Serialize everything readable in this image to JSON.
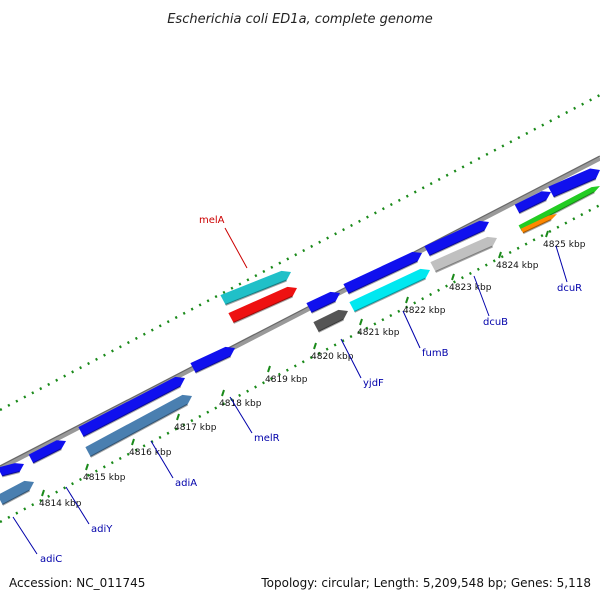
{
  "title": "Escherichia coli ED1a, complete genome",
  "footer": {
    "accession": "Accession: NC_011745",
    "summary": "Topology: circular; Length: 5,209,548 bp; Genes: 5,118"
  },
  "colors": {
    "backbone": "#888888",
    "ticks": "#1a8a1a",
    "label_blue": "#0000aa",
    "label_red": "#cc0000"
  },
  "scale_labels": [
    "4814 kbp",
    "4815 kbp",
    "4816 kbp",
    "4817 kbp",
    "4818 kbp",
    "4819 kbp",
    "4820 kbp",
    "4821 kbp",
    "4822 kbp",
    "4823 kbp",
    "4824 kbp",
    "4825 kbp"
  ],
  "genes": [
    {
      "name": "adiC",
      "color": "#4a7fb0",
      "strand": "forward-lower"
    },
    {
      "name": "adiY",
      "color": "#1010ee",
      "strand": "forward-upper"
    },
    {
      "name": "adiA",
      "color": "#4a7fb0",
      "strand": "forward-lower"
    },
    {
      "name": "melR",
      "color": "#1010ee",
      "strand": "forward-upper"
    },
    {
      "name": "melA",
      "color": "#20c0c8",
      "strand": "upper"
    },
    {
      "name": "yjdF",
      "color": "#555555",
      "strand": "forward-lower"
    },
    {
      "name": "fumB",
      "color": "#00e8f0",
      "strand": "forward-lower"
    },
    {
      "name": "dcuB",
      "color": "#c0c0c0",
      "strand": "forward-lower"
    },
    {
      "name": "dcuR",
      "color": "#1010ee",
      "strand": "forward-upper"
    }
  ]
}
